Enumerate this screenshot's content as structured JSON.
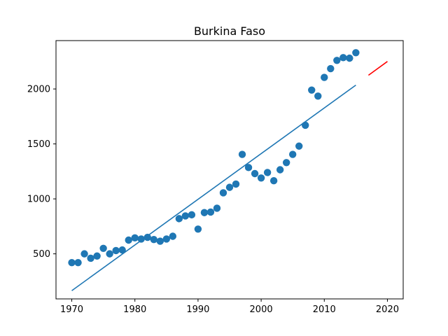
{
  "chart_data": {
    "type": "scatter",
    "title": "Burkina Faso",
    "xlabel": "",
    "ylabel": "",
    "xlim": [
      1967.5,
      2022.5
    ],
    "ylim": [
      90,
      2440
    ],
    "grid": false,
    "x_ticks": [
      1970,
      1980,
      1990,
      2000,
      2010,
      2020
    ],
    "y_ticks": [
      500,
      1000,
      1500,
      2000
    ],
    "colors": {
      "points": "#1f77b4",
      "fit_line": "#1f77b4",
      "forecast_line": "#ff0000"
    },
    "series": [
      {
        "kind": "points",
        "x": [
          1970,
          1971,
          1972,
          1973,
          1974,
          1975,
          1976,
          1977,
          1978,
          1979,
          1980,
          1981,
          1982,
          1983,
          1984,
          1985,
          1986,
          1987,
          1988,
          1989,
          1990,
          1991,
          1992,
          1993,
          1994,
          1995,
          1996,
          1997,
          1998,
          1999,
          2000,
          2001,
          2002,
          2003,
          2004,
          2005,
          2006,
          2007,
          2008,
          2009,
          2010,
          2011,
          2012,
          2013,
          2014,
          2015
        ],
        "y": [
          420,
          420,
          500,
          460,
          480,
          550,
          500,
          530,
          535,
          625,
          645,
          635,
          650,
          630,
          615,
          635,
          660,
          820,
          845,
          855,
          725,
          875,
          880,
          915,
          1055,
          1105,
          1135,
          1405,
          1285,
          1230,
          1190,
          1240,
          1165,
          1265,
          1330,
          1405,
          1480,
          1670,
          1990,
          1935,
          2105,
          2185,
          2260,
          2285,
          2280,
          2330
        ]
      },
      {
        "kind": "fit_line",
        "x": [
          1970,
          2015
        ],
        "y": [
          165,
          2035
        ]
      },
      {
        "kind": "forecast_line",
        "x": [
          2017,
          2020
        ],
        "y": [
          2125,
          2250
        ]
      }
    ]
  }
}
